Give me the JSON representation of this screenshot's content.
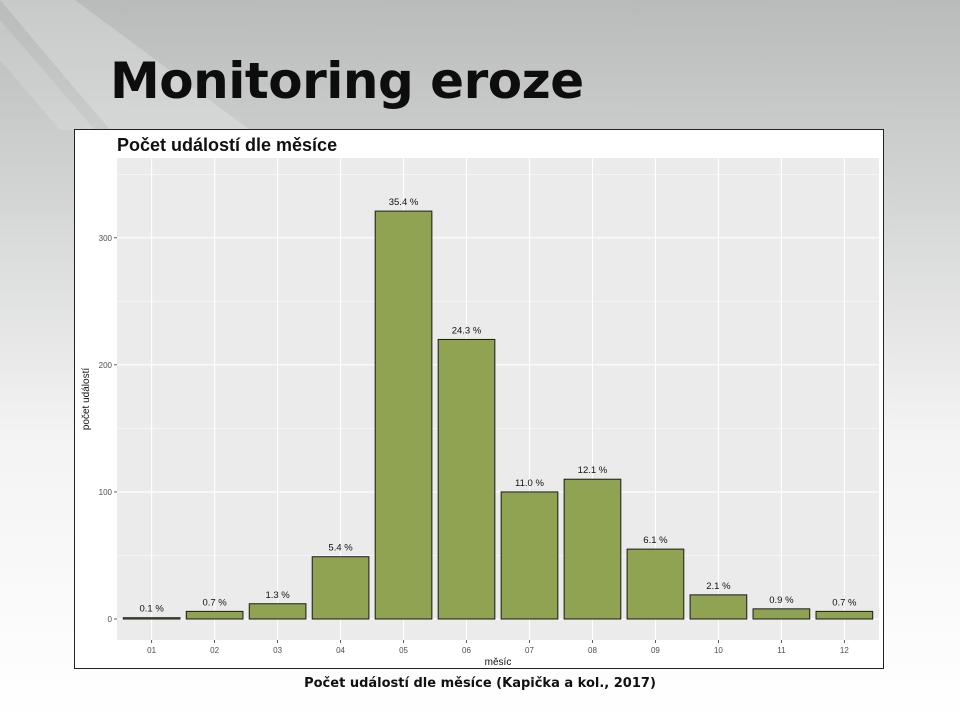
{
  "slide": {
    "title": "Monitoring eroze",
    "caption": "Počet událostí dle měsíce (Kapička a kol., 2017)"
  },
  "colors": {
    "bar_fill": "#8fa352",
    "bar_stroke": "#1a1a1a",
    "panel_bg": "#ebebeb",
    "grid": "#ffffff"
  },
  "chart_data": {
    "type": "bar",
    "title": "Počet událostí dle měsíce",
    "xlabel": "měsíc",
    "ylabel": "počet událostí",
    "categories": [
      "01",
      "02",
      "03",
      "04",
      "05",
      "06",
      "07",
      "08",
      "09",
      "10",
      "11",
      "12"
    ],
    "values": [
      1,
      6,
      12,
      49,
      321,
      220,
      100,
      110,
      55,
      19,
      8,
      6
    ],
    "labels": [
      "0.1 %",
      "0.7 %",
      "1.3 %",
      "5.4 %",
      "35.4 %",
      "24.3 %",
      "11.0 %",
      "12.1 %",
      "6.1 %",
      "2.1 %",
      "0.9 %",
      "0.7 %"
    ],
    "ylim": [
      0,
      362
    ],
    "yticks": [
      0,
      100,
      200,
      300
    ],
    "ytick_labels": [
      "0",
      "100",
      "200",
      "300"
    ],
    "grid": true
  }
}
